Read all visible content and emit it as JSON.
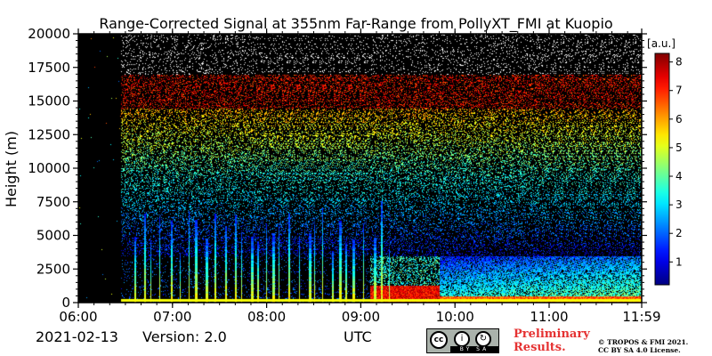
{
  "chart_data": {
    "type": "heatmap",
    "title": "Range-Corrected Signal at 355nm Far-Range from PollyXT_FMI at Kuopio",
    "ylabel": "Height (m)",
    "xlabel": "UTC",
    "x_ticks": [
      "06:00",
      "07:00",
      "08:00",
      "09:00",
      "10:00",
      "11:00",
      "11:59"
    ],
    "x_range_hours": [
      6.0,
      11.983
    ],
    "y_ticks": [
      0,
      2500,
      5000,
      7500,
      10000,
      12500,
      15000,
      17500,
      20000
    ],
    "ylim": [
      0,
      20000
    ],
    "colorbar": {
      "unit": "[a.u.]",
      "ticks": [
        1,
        2,
        3,
        4,
        5,
        6,
        7,
        8
      ],
      "range": [
        0.2,
        8.3
      ],
      "colormap": "jet",
      "placement": "right"
    },
    "features": [
      {
        "description_key": "no_data",
        "x_start": 6.0,
        "x_end": 6.45
      },
      {
        "description_key": "strong_signal_layer",
        "x_start": 9.1,
        "x_end": 9.83,
        "height_range": [
          0,
          1300
        ],
        "value": 7.5
      },
      {
        "description_key": "aerosol_layer",
        "x_start": 9.83,
        "x_end": 11.983,
        "height_range": [
          0,
          3500
        ],
        "value": 4
      }
    ]
  },
  "footer": {
    "date": "2021-02-13",
    "version": "Version: 2.0",
    "preliminary_line1": "Preliminary",
    "preliminary_line2": "Results.",
    "copyright_line1": "© TROPOS & FMI 2021.",
    "copyright_line2": "CC BY SA 4.0 License.",
    "license_badge": {
      "cc": "cc",
      "strip": "BY SA"
    }
  },
  "colors": {
    "background_nodata": "#000000",
    "prelim_text": "#e53232"
  }
}
